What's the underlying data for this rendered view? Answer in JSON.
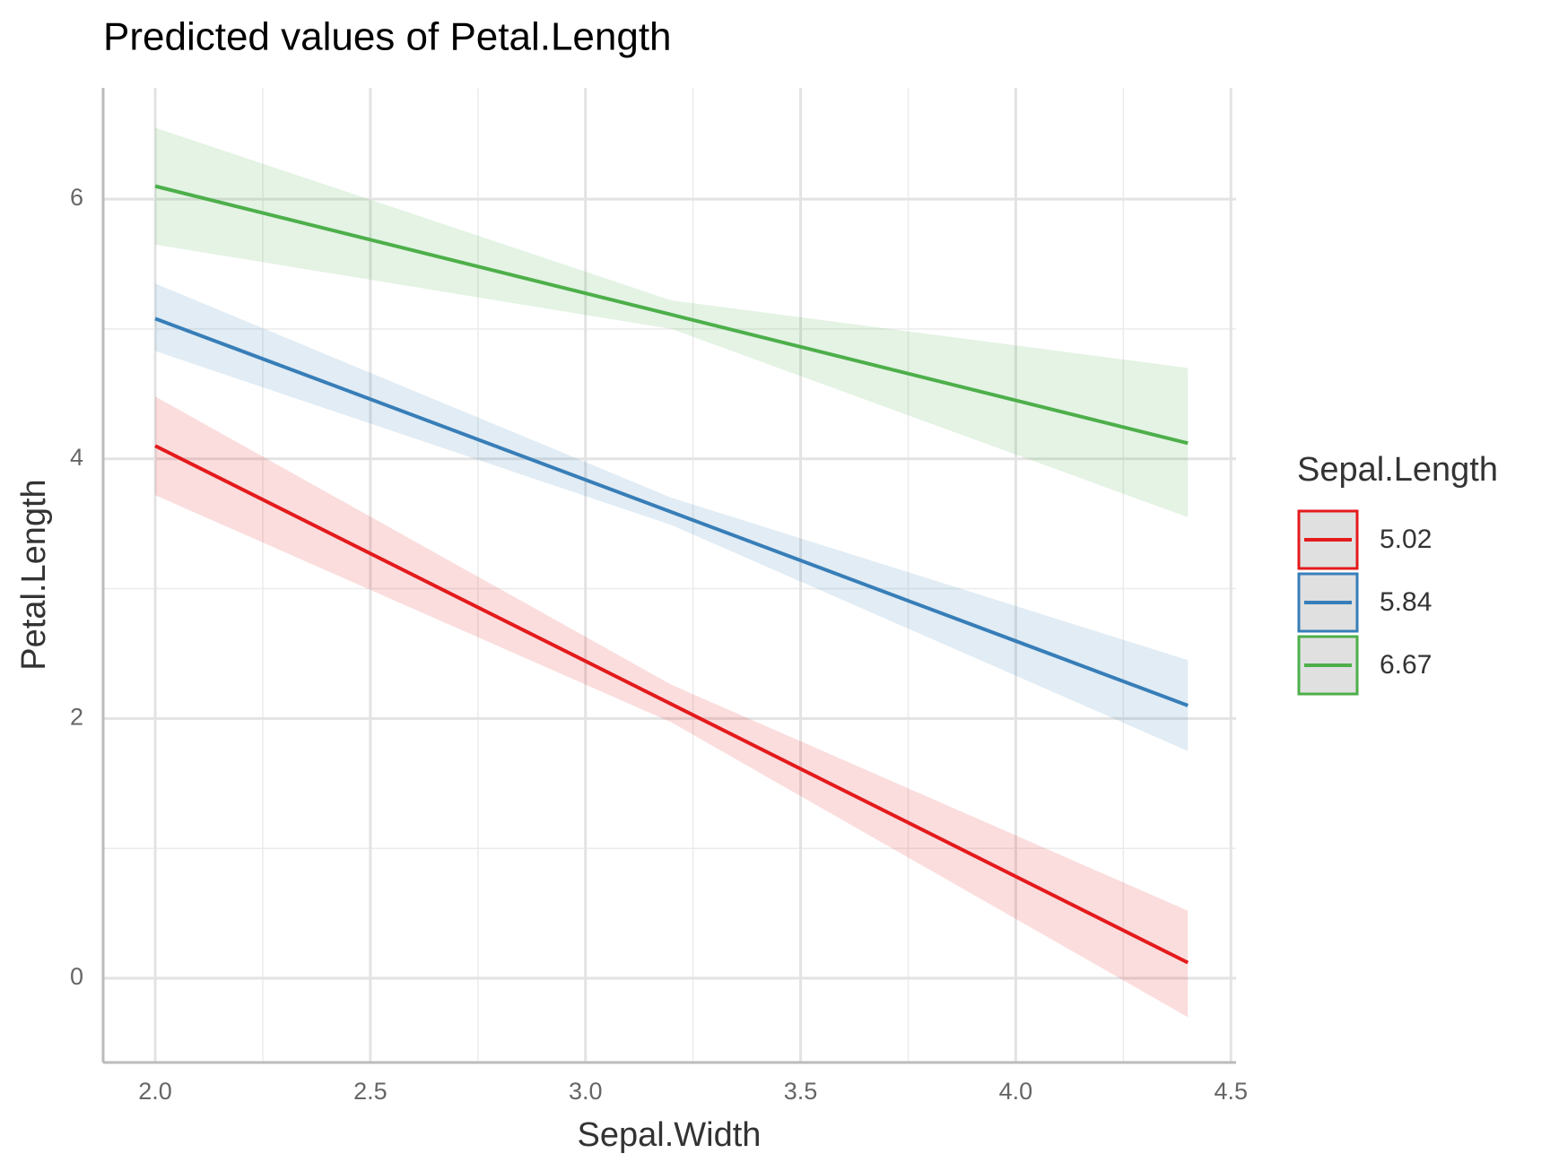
{
  "chart_data": {
    "type": "line",
    "title": "Predicted values of Petal.Length",
    "x_label": "Sepal.Width",
    "y_label": "Petal.Length",
    "legend_title": "Sepal.Length",
    "legend_position": "right",
    "x": [
      2.0,
      3.2,
      4.4
    ],
    "series": [
      {
        "name": "5.02",
        "color": "#e41a1c",
        "values": [
          4.1,
          2.11,
          0.12
        ],
        "lower": [
          3.72,
          1.97,
          -0.3
        ],
        "upper": [
          4.48,
          2.26,
          0.52
        ]
      },
      {
        "name": "5.84",
        "color": "#377eb8",
        "values": [
          5.08,
          3.59,
          2.1
        ],
        "lower": [
          4.83,
          3.49,
          1.75
        ],
        "upper": [
          5.35,
          3.7,
          2.45
        ]
      },
      {
        "name": "6.67",
        "color": "#4daf4a",
        "values": [
          6.1,
          5.11,
          4.12
        ],
        "lower": [
          5.65,
          5.0,
          3.55
        ],
        "upper": [
          6.55,
          5.22,
          4.7
        ]
      }
    ],
    "xlim": [
      1.879,
      4.512
    ],
    "ylim": [
      -0.649,
      6.857
    ],
    "xticks": [
      {
        "value": 2,
        "label": "2.0"
      },
      2.5,
      {
        "value": 3,
        "label": "3.0"
      },
      3.5,
      {
        "value": 4,
        "label": "4.0"
      },
      4.5
    ],
    "yticks": [
      0,
      2,
      4,
      6
    ],
    "grid": true
  }
}
